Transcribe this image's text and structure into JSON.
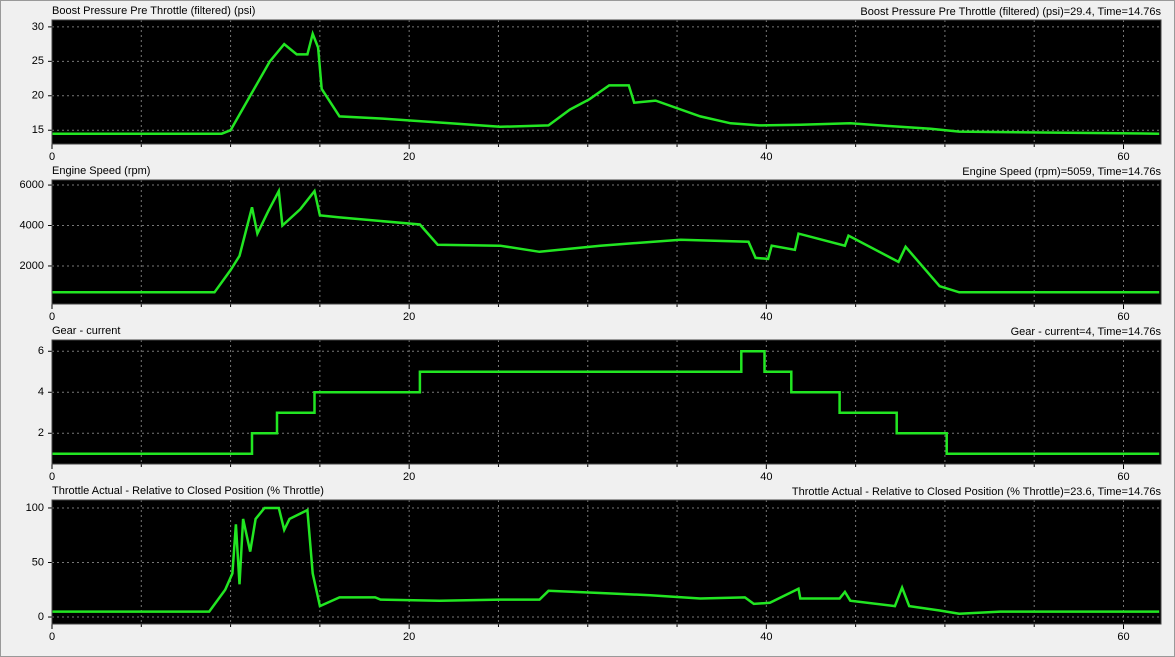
{
  "chart_data": [
    {
      "type": "line",
      "title": "Boost Pressure Pre Throttle (filtered) (psi)",
      "annotation": "Boost Pressure Pre Throttle (filtered) (psi)=29.4, Time=14.76s",
      "x": [
        0,
        9.5,
        10,
        11.1,
        12.2,
        13.0,
        13.7,
        14.3,
        14.6,
        14.9,
        15.1,
        16.1,
        18.4,
        22.3,
        25.1,
        27.8,
        29.0,
        30.1,
        31.2,
        32.3,
        32.6,
        33.8,
        36.3,
        38.0,
        39.6,
        41.9,
        44.7,
        47.5,
        49.2,
        50.8,
        62.0
      ],
      "values": [
        14.5,
        14.5,
        15,
        20,
        25,
        27.5,
        26,
        26,
        29,
        27,
        21,
        17,
        16.7,
        16,
        15.5,
        15.7,
        18,
        19.5,
        21.5,
        21.5,
        19,
        19.3,
        17,
        16,
        15.7,
        15.8,
        16,
        15.5,
        15.2,
        14.8,
        14.5
      ],
      "color": "#22e622",
      "xlim": [
        0,
        62.1
      ],
      "xticks": [
        0,
        20,
        40,
        60
      ],
      "xminorticks": [
        5,
        10,
        15,
        25,
        30,
        35,
        45,
        50,
        55
      ],
      "ylim": [
        13,
        31
      ],
      "yticks": [
        15,
        20,
        25,
        30
      ],
      "grid": true
    },
    {
      "type": "line",
      "title": "Engine Speed (rpm)",
      "annotation": "Engine Speed (rpm)=5059, Time=14.76s",
      "x": [
        0,
        9.1,
        10.0,
        10.5,
        11.2,
        11.5,
        12.1,
        12.7,
        12.9,
        13.9,
        14.7,
        15.0,
        16.1,
        20.6,
        21.6,
        25.1,
        27.3,
        30.7,
        35.2,
        39.0,
        39.4,
        40.1,
        40.3,
        41.6,
        41.8,
        44.4,
        44.6,
        47.4,
        47.8,
        49.7,
        50.8,
        62.0
      ],
      "values": [
        700,
        700,
        1800,
        2500,
        4900,
        3600,
        4700,
        5700,
        4000,
        4800,
        5700,
        4500,
        4400,
        4050,
        3050,
        3000,
        2700,
        3000,
        3300,
        3200,
        2400,
        2350,
        3000,
        2800,
        3600,
        3000,
        3500,
        2200,
        2950,
        1000,
        700,
        700
      ],
      "color": "#22e622",
      "xlim": [
        0,
        62.1
      ],
      "xticks": [
        0,
        20,
        40,
        60
      ],
      "xminorticks": [
        5,
        10,
        15,
        25,
        30,
        35,
        45,
        50,
        55
      ],
      "ylim": [
        120,
        6250
      ],
      "yticks": [
        2000,
        4000,
        6000
      ],
      "grid": true
    },
    {
      "type": "line",
      "title": "Gear - current",
      "annotation": "Gear - current=4, Time=14.76s",
      "x": [
        0,
        11.2,
        11.2,
        12.6,
        12.6,
        14.7,
        14.7,
        20.6,
        20.6,
        38.6,
        38.6,
        39.9,
        39.9,
        41.4,
        41.4,
        44.1,
        44.1,
        47.3,
        47.3,
        50.1,
        50.1,
        62.0
      ],
      "values": [
        1,
        1,
        2,
        2,
        3,
        3,
        4,
        4,
        5,
        5,
        6,
        6,
        5,
        5,
        4,
        4,
        3,
        3,
        2,
        2,
        1,
        1
      ],
      "color": "#22e622",
      "xlim": [
        0,
        62.1
      ],
      "xticks": [
        0,
        20,
        40,
        60
      ],
      "xminorticks": [
        5,
        10,
        15,
        25,
        30,
        35,
        45,
        50,
        55
      ],
      "ylim": [
        0.5,
        6.55
      ],
      "yticks": [
        2,
        4,
        6
      ],
      "grid": true
    },
    {
      "type": "line",
      "title": "Throttle Actual - Relative to Closed Position (% Throttle)",
      "annotation": "Throttle Actual - Relative to Closed Position (% Throttle)=23.6, Time=14.76s",
      "x": [
        0,
        8.8,
        9.7,
        10.1,
        10.3,
        10.5,
        10.7,
        11.1,
        11.4,
        11.9,
        12.7,
        13.0,
        13.3,
        14.3,
        14.6,
        15.0,
        16.1,
        18.1,
        18.4,
        21.7,
        25.1,
        27.3,
        27.8,
        30.7,
        33.5,
        36.3,
        38.8,
        39.3,
        40.2,
        41.8,
        41.9,
        44.1,
        44.4,
        44.7,
        47.2,
        47.6,
        48.0,
        49.7,
        50.8,
        53.1,
        62.0
      ],
      "values": [
        5,
        5,
        25,
        40,
        85,
        30,
        90,
        60,
        90,
        100,
        100,
        80,
        90,
        98,
        40,
        10,
        18,
        18,
        16,
        15,
        16,
        16,
        24,
        22,
        20,
        17,
        18,
        12,
        13,
        26,
        17,
        17,
        23,
        15,
        10,
        27,
        10,
        6,
        3,
        5,
        5
      ],
      "color": "#22e622",
      "xlim": [
        0,
        62.1
      ],
      "xticks": [
        0,
        20,
        40,
        60
      ],
      "xminorticks": [
        5,
        10,
        15,
        25,
        30,
        35,
        45,
        50,
        55
      ],
      "ylim": [
        -6.4,
        107.3
      ],
      "yticks": [
        0,
        50,
        100
      ],
      "grid": true
    }
  ]
}
